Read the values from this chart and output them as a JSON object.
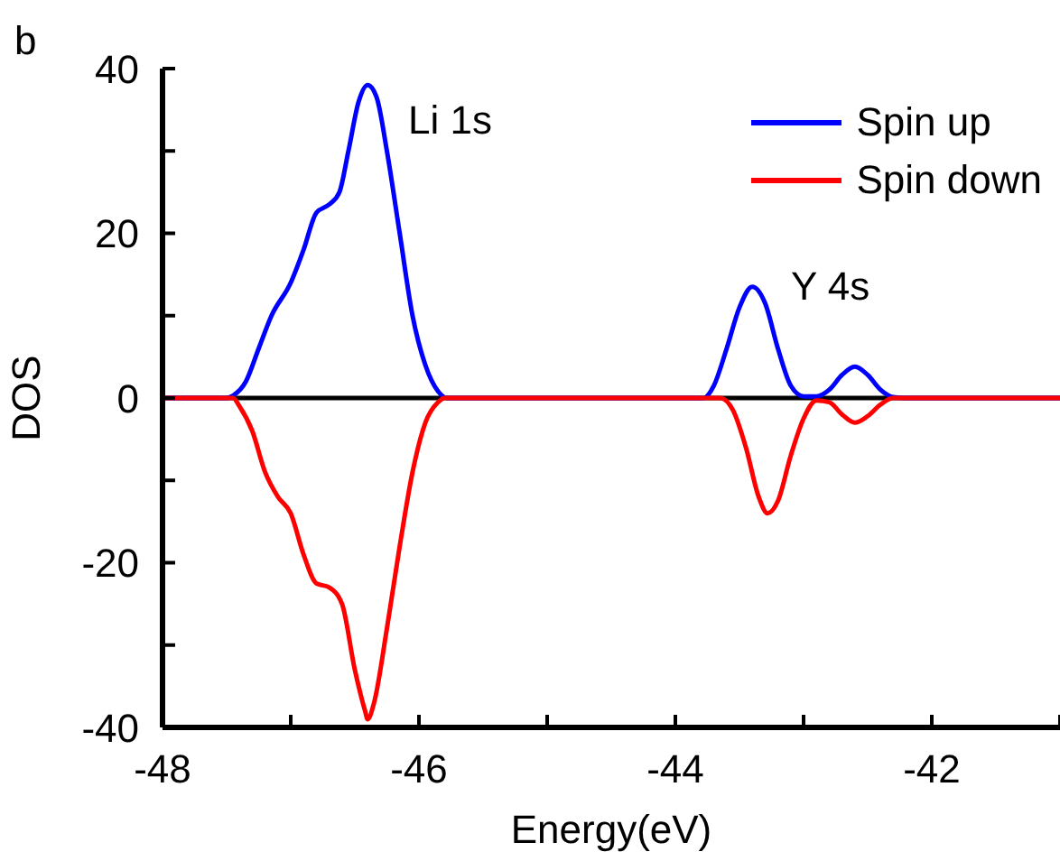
{
  "chart_data": {
    "type": "line",
    "xlabel": "Energy(eV)",
    "ylabel": "DOS",
    "xlim": [
      -48,
      -41
    ],
    "xticks": [
      -48,
      {
        "value": -47,
        "label": null
      },
      -46,
      {
        "value": -45,
        "label": null
      },
      -44,
      {
        "value": -43,
        "label": null
      },
      -42,
      {
        "value": -41,
        "label": null
      }
    ],
    "ylim": [
      -40,
      40
    ],
    "yticks": [
      -40,
      {
        "value": -30,
        "label": null
      },
      -20,
      {
        "value": -10,
        "label": null
      },
      0,
      {
        "value": 10,
        "label": null
      },
      20,
      {
        "value": 30,
        "label": null
      },
      40
    ],
    "legend": "top right",
    "grid": false,
    "marker": "none",
    "line_style": "solid",
    "ref_lines": [
      {
        "axis": "y",
        "value": 0,
        "color": "#000000"
      }
    ],
    "annotations": [
      "b",
      "Li 1s",
      "Y 4s"
    ],
    "series": [
      {
        "name": "Spin up",
        "color": "#0000ff",
        "x": [
          -48,
          -47.5,
          -47.45,
          -47.35,
          -47.25,
          -47.15,
          -47.0,
          -46.9,
          -46.8,
          -46.7,
          -46.62,
          -46.55,
          -46.47,
          -46.4,
          -46.33,
          -46.25,
          -46.15,
          -46.05,
          -45.95,
          -45.85,
          -45.78,
          -44,
          -43.78,
          -43.7,
          -43.6,
          -43.5,
          -43.4,
          -43.3,
          -43.2,
          -43.1,
          -43.0,
          -42.9,
          -42.8,
          -42.7,
          -42.6,
          -42.5,
          -42.4,
          -42.3,
          -42.2,
          -41
        ],
        "values": [
          0,
          0,
          0.3,
          2,
          6,
          10,
          14,
          18,
          22.5,
          23.5,
          25,
          30,
          36,
          38,
          36.5,
          30,
          20,
          10,
          4,
          0.8,
          0,
          0,
          0,
          1.5,
          6,
          11,
          13.5,
          11.5,
          6,
          1.5,
          0.2,
          0.2,
          1,
          2.8,
          3.8,
          2.8,
          1,
          0.1,
          0,
          0
        ]
      },
      {
        "name": "Spin down",
        "color": "#ff0000",
        "x": [
          -48,
          -47.45,
          -47.4,
          -47.3,
          -47.2,
          -47.1,
          -47.0,
          -46.9,
          -46.8,
          -46.7,
          -46.6,
          -46.5,
          -46.42,
          -46.4,
          -46.35,
          -46.25,
          -46.15,
          -46.05,
          -45.95,
          -45.85,
          -45.8,
          -43.65,
          -43.55,
          -43.45,
          -43.35,
          -43.28,
          -43.2,
          -43.1,
          -43.0,
          -42.9,
          -42.8,
          -42.7,
          -42.6,
          -42.5,
          -42.4,
          -42.3,
          -41
        ],
        "values": [
          0,
          0,
          -1,
          -4,
          -9,
          -12,
          -14,
          -19,
          -22.5,
          -23,
          -25,
          -33,
          -38,
          -39,
          -37,
          -28,
          -18,
          -9,
          -3,
          -0.5,
          0,
          0,
          -1.5,
          -6,
          -12,
          -14,
          -12.5,
          -7,
          -2.5,
          -0.3,
          -0.5,
          -2,
          -3,
          -2.2,
          -0.8,
          0,
          0
        ]
      }
    ]
  }
}
